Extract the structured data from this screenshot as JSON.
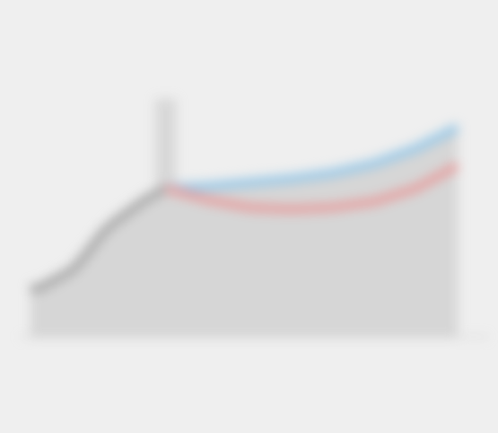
{
  "chart_data": {
    "type": "area",
    "title": "",
    "subtitle": "",
    "note": "",
    "unit_label": "",
    "annotation": "",
    "source": "",
    "x_ticks": [],
    "colors": {
      "history": "#aaaaaa",
      "upper": "#9cc9e6",
      "lower": "#e5a3a3",
      "shade": "#c4c4c4"
    },
    "series": [
      {
        "key": "history",
        "x": [
          0,
          1,
          2,
          3,
          4,
          5,
          6,
          7,
          8,
          9,
          10,
          11,
          12,
          13
        ],
        "values": [
          280,
          282,
          288,
          294,
          300,
          312,
          326,
          340,
          350,
          358,
          366,
          374,
          380,
          386
        ]
      },
      {
        "key": "upper",
        "x": [
          13,
          17,
          21,
          25,
          29,
          33,
          37,
          41
        ],
        "values": [
          386,
          388,
          392,
          396,
          402,
          412,
          428,
          450
        ]
      },
      {
        "key": "lower",
        "x": [
          13,
          17,
          21,
          25,
          29,
          33,
          37,
          41
        ],
        "values": [
          386,
          374,
          366,
          364,
          366,
          372,
          386,
          410
        ]
      }
    ],
    "shaded_x": [
      12,
      14
    ],
    "xlim": [
      -1,
      44
    ],
    "ylim": [
      230,
      480
    ],
    "legend": [],
    "legend_position": "top-right"
  }
}
